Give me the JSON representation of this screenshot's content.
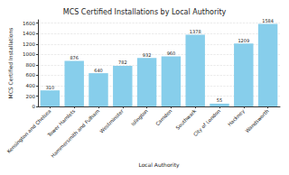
{
  "chart_data": {
    "type": "bar",
    "title": "MCS Certified Installations by Local Authority",
    "x_label": "Local Authority",
    "y_label": "MCS Certified Installations",
    "categories": [
      "Kensington and Chelsea",
      "Tower Hamlets",
      "Hammersmith and Fulham",
      "Westminster",
      "Islington",
      "Camden",
      "Southwark",
      "City of London",
      "Hackney",
      "Wandsworth"
    ],
    "values": [
      310,
      876,
      640,
      782,
      932,
      960,
      1378,
      55,
      1209,
      1584
    ],
    "color": "#87ceeb",
    "ylim": [
      0,
      1663
    ],
    "yticks": [
      0,
      200,
      400,
      600,
      800,
      1000,
      1200,
      1400,
      1600
    ],
    "grid": true,
    "data_labels": true
  }
}
